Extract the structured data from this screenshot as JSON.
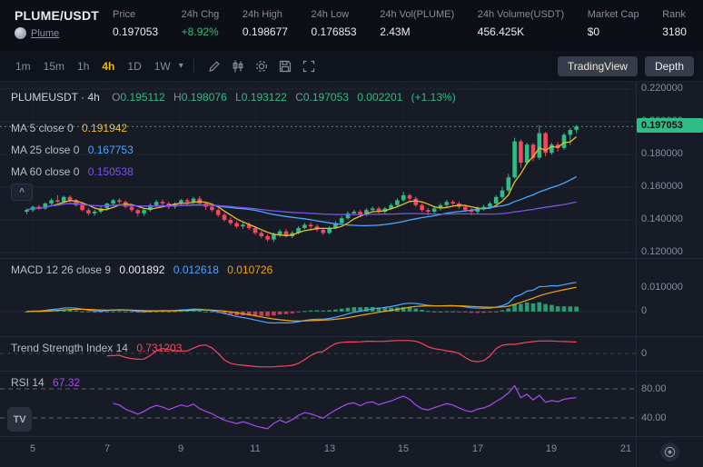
{
  "colors": {
    "up": "#2ebd85",
    "down": "#f6465d",
    "accent": "#f0b90b",
    "ma5": "#e8c02e",
    "ma25": "#4da6ff",
    "ma60": "#7b52e8",
    "macd_line": "#4da6ff",
    "signal_line": "#f7a600",
    "tsi_line": "#f6465d",
    "rsi_line": "#a64ced",
    "axis_text": "#848e9c",
    "price_tag_bg": "#2ebd85"
  },
  "header": {
    "pair": "PLUME/USDT",
    "coin_name": "Plume",
    "stats": [
      {
        "label": "Price",
        "value": "0.197053"
      },
      {
        "label": "24h Chg",
        "value": "+8.92%"
      },
      {
        "label": "24h High",
        "value": "0.198677"
      },
      {
        "label": "24h Low",
        "value": "0.176853"
      },
      {
        "label": "24h Vol(PLUME)",
        "value": "2.43M"
      },
      {
        "label": "24h Volume(USDT)",
        "value": "456.425K"
      },
      {
        "label": "Market Cap",
        "value": "$0"
      },
      {
        "label": "Rank",
        "value": "3180"
      }
    ]
  },
  "toolbar": {
    "timeframes": [
      "1m",
      "15m",
      "1h",
      "4h",
      "1D",
      "1W"
    ],
    "active": "4h",
    "tradingview_label": "TradingView",
    "depth_label": "Depth"
  },
  "icons": {
    "tradingview_logo_text": "TV",
    "collapse_chevron": "^",
    "timeframe_caret": "▾"
  },
  "chart": {
    "legend": {
      "symbol": "PLUMEUSDT · 4h",
      "o_key": "O",
      "o": "0.195112",
      "h_key": "H",
      "h": "0.198076",
      "l_key": "L",
      "l": "0.193122",
      "c_key": "C",
      "c": "0.197053",
      "change": "0.002201",
      "change_pct": "(+1.13%)"
    },
    "ma": [
      {
        "label": "MA 5 close 0",
        "value": "0.191942"
      },
      {
        "label": "MA 25 close 0",
        "value": "0.167753"
      },
      {
        "label": "MA 60 close 0",
        "value": "0.150538"
      }
    ],
    "price_tag": "0.197053",
    "price_axis": [
      "0.220000",
      "0.200000",
      "0.180000",
      "0.160000",
      "0.140000",
      "0.120000"
    ]
  },
  "macd": {
    "label": "MACD 12 26 close 9",
    "v1": "0.001892",
    "v2": "0.012618",
    "v3": "0.010726",
    "axis": [
      "0.010000",
      "0"
    ]
  },
  "tsi": {
    "label": "Trend Strength Index 14",
    "value": "0.731203",
    "axis": [
      "0"
    ]
  },
  "rsi": {
    "label": "RSI 14",
    "value": "67.32",
    "axis": [
      "80.00",
      "40.00"
    ]
  },
  "time_axis": [
    "5",
    "7",
    "9",
    "11",
    "13",
    "15",
    "17",
    "19",
    "21"
  ],
  "chart_data": {
    "type": "candlestick",
    "symbol": "PLUMEUSDT",
    "timeframe": "4h",
    "last_price": 0.197053,
    "ylim": [
      0.118,
      0.225
    ],
    "x_tick_days": [
      5,
      7,
      9,
      11,
      13,
      15,
      17,
      19,
      21
    ],
    "overlays": [
      {
        "name": "MA",
        "period": 5
      },
      {
        "name": "MA",
        "period": 25
      },
      {
        "name": "MA",
        "period": 60
      }
    ],
    "panels": [
      {
        "name": "MACD",
        "params": [
          12,
          26,
          9
        ],
        "axis_labels": [
          "0.010000",
          "0"
        ]
      },
      {
        "name": "Trend Strength Index",
        "period": 14,
        "axis_labels": [
          "0"
        ]
      },
      {
        "name": "RSI",
        "period": 14,
        "levels": [
          80,
          40
        ],
        "axis_labels": [
          "80.00",
          "40.00"
        ]
      }
    ],
    "candles": [
      [
        0.145,
        0.147,
        0.1435,
        0.146
      ],
      [
        0.146,
        0.1487,
        0.1448,
        0.148
      ],
      [
        0.148,
        0.1492,
        0.146,
        0.147
      ],
      [
        0.147,
        0.1508,
        0.1462,
        0.15
      ],
      [
        0.15,
        0.1532,
        0.149,
        0.152
      ],
      [
        0.152,
        0.1552,
        0.1505,
        0.151
      ],
      [
        0.151,
        0.1548,
        0.1502,
        0.154
      ],
      [
        0.154,
        0.1549,
        0.1508,
        0.152
      ],
      [
        0.152,
        0.1528,
        0.148,
        0.149
      ],
      [
        0.149,
        0.1502,
        0.1452,
        0.146
      ],
      [
        0.146,
        0.1472,
        0.1428,
        0.144
      ],
      [
        0.144,
        0.1462,
        0.1425,
        0.145
      ],
      [
        0.145,
        0.1482,
        0.1438,
        0.147
      ],
      [
        0.147,
        0.1505,
        0.1458,
        0.15
      ],
      [
        0.15,
        0.1528,
        0.1488,
        0.152
      ],
      [
        0.152,
        0.1532,
        0.1495,
        0.151
      ],
      [
        0.151,
        0.1518,
        0.147,
        0.148
      ],
      [
        0.148,
        0.1492,
        0.1448,
        0.146
      ],
      [
        0.146,
        0.1468,
        0.1422,
        0.144
      ],
      [
        0.144,
        0.1468,
        0.1425,
        0.146
      ],
      [
        0.146,
        0.1502,
        0.145,
        0.149
      ],
      [
        0.149,
        0.1522,
        0.1478,
        0.151
      ],
      [
        0.151,
        0.1525,
        0.1485,
        0.15
      ],
      [
        0.15,
        0.1512,
        0.1465,
        0.148
      ],
      [
        0.148,
        0.1508,
        0.1468,
        0.15
      ],
      [
        0.15,
        0.1528,
        0.1488,
        0.152
      ],
      [
        0.152,
        0.1532,
        0.1492,
        0.151
      ],
      [
        0.151,
        0.1542,
        0.1498,
        0.153
      ],
      [
        0.153,
        0.1545,
        0.1488,
        0.15
      ],
      [
        0.15,
        0.1512,
        0.1462,
        0.148
      ],
      [
        0.148,
        0.1492,
        0.1448,
        0.146
      ],
      [
        0.146,
        0.1472,
        0.1418,
        0.143
      ],
      [
        0.143,
        0.1442,
        0.1388,
        0.14
      ],
      [
        0.14,
        0.1415,
        0.1368,
        0.138
      ],
      [
        0.138,
        0.1392,
        0.1348,
        0.136
      ],
      [
        0.136,
        0.1382,
        0.1345,
        0.137
      ],
      [
        0.137,
        0.1385,
        0.1338,
        0.135
      ],
      [
        0.135,
        0.1362,
        0.1308,
        0.132
      ],
      [
        0.132,
        0.1332,
        0.1288,
        0.13
      ],
      [
        0.13,
        0.1312,
        0.1268,
        0.128
      ],
      [
        0.128,
        0.1322,
        0.1265,
        0.131
      ],
      [
        0.131,
        0.1342,
        0.1295,
        0.133
      ],
      [
        0.133,
        0.1345,
        0.1292,
        0.13
      ],
      [
        0.13,
        0.1332,
        0.1288,
        0.132
      ],
      [
        0.132,
        0.1362,
        0.1312,
        0.135
      ],
      [
        0.135,
        0.1382,
        0.1342,
        0.137
      ],
      [
        0.137,
        0.1385,
        0.1345,
        0.136
      ],
      [
        0.136,
        0.1372,
        0.1328,
        0.134
      ],
      [
        0.134,
        0.1352,
        0.1308,
        0.132
      ],
      [
        0.132,
        0.1362,
        0.1312,
        0.135
      ],
      [
        0.135,
        0.1392,
        0.1345,
        0.138
      ],
      [
        0.138,
        0.1422,
        0.1372,
        0.141
      ],
      [
        0.141,
        0.1452,
        0.1402,
        0.144
      ],
      [
        0.144,
        0.1462,
        0.1428,
        0.145
      ],
      [
        0.145,
        0.1462,
        0.1418,
        0.143
      ],
      [
        0.143,
        0.1472,
        0.1422,
        0.146
      ],
      [
        0.146,
        0.1482,
        0.1448,
        0.147
      ],
      [
        0.147,
        0.1482,
        0.1438,
        0.145
      ],
      [
        0.145,
        0.1478,
        0.1438,
        0.147
      ],
      [
        0.147,
        0.1502,
        0.1462,
        0.149
      ],
      [
        0.149,
        0.1532,
        0.1482,
        0.152
      ],
      [
        0.152,
        0.1572,
        0.1512,
        0.155
      ],
      [
        0.155,
        0.1562,
        0.1518,
        0.153
      ],
      [
        0.153,
        0.1542,
        0.1478,
        0.149
      ],
      [
        0.149,
        0.1502,
        0.1448,
        0.146
      ],
      [
        0.146,
        0.1472,
        0.1428,
        0.145
      ],
      [
        0.145,
        0.1482,
        0.1438,
        0.147
      ],
      [
        0.147,
        0.1502,
        0.1458,
        0.149
      ],
      [
        0.149,
        0.1522,
        0.1478,
        0.151
      ],
      [
        0.151,
        0.1522,
        0.1488,
        0.15
      ],
      [
        0.15,
        0.1512,
        0.1468,
        0.148
      ],
      [
        0.148,
        0.1492,
        0.1448,
        0.146
      ],
      [
        0.146,
        0.1472,
        0.1428,
        0.145
      ],
      [
        0.145,
        0.1482,
        0.1438,
        0.147
      ],
      [
        0.147,
        0.1492,
        0.1458,
        0.148
      ],
      [
        0.148,
        0.1512,
        0.1468,
        0.15
      ],
      [
        0.15,
        0.1552,
        0.1492,
        0.154
      ],
      [
        0.154,
        0.1602,
        0.1528,
        0.158
      ],
      [
        0.158,
        0.1682,
        0.1568,
        0.166
      ],
      [
        0.166,
        0.1902,
        0.1652,
        0.188
      ],
      [
        0.188,
        0.1892,
        0.1718,
        0.175
      ],
      [
        0.175,
        0.1872,
        0.1738,
        0.186
      ],
      [
        0.186,
        0.1872,
        0.1758,
        0.178
      ],
      [
        0.178,
        0.198,
        0.1768,
        0.193
      ],
      [
        0.193,
        0.1938,
        0.1788,
        0.181
      ],
      [
        0.181,
        0.1872,
        0.1798,
        0.186
      ],
      [
        0.186,
        0.1875,
        0.1818,
        0.184
      ],
      [
        0.184,
        0.1932,
        0.1828,
        0.192
      ],
      [
        0.192,
        0.1962,
        0.1858,
        0.195
      ],
      [
        0.195112,
        0.198076,
        0.193122,
        0.197053
      ]
    ]
  }
}
